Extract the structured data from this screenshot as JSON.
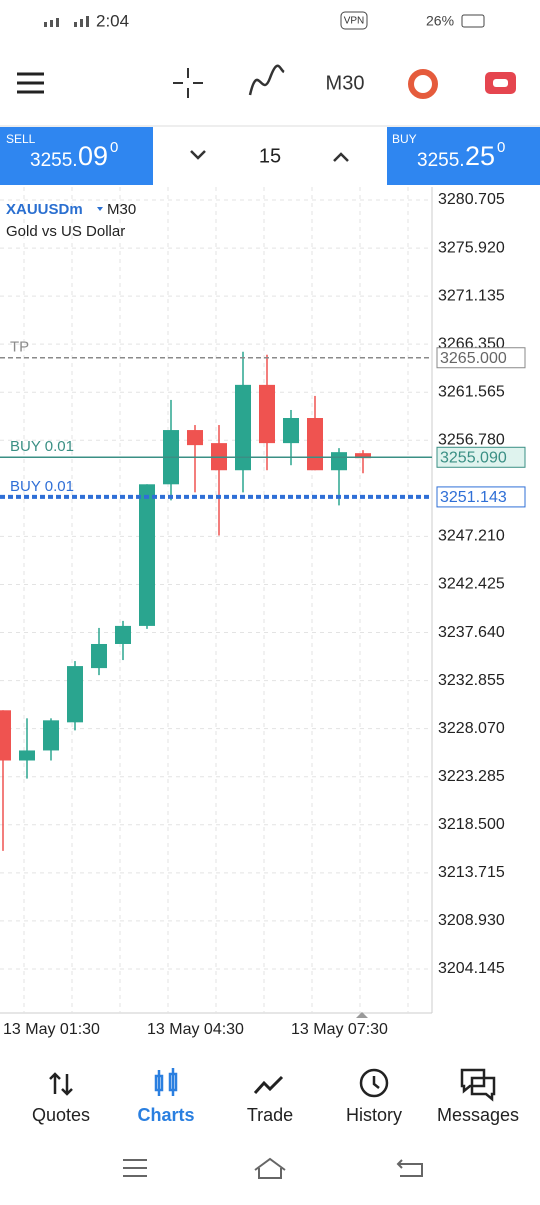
{
  "status_bar": {
    "time": "2:04",
    "vpn": "VPN",
    "battery": "26%"
  },
  "toolbar": {
    "timeframe": "M30"
  },
  "trade_bar": {
    "sell": {
      "label": "SELL",
      "main": "3255.",
      "big": "09",
      "sup": "0"
    },
    "lot": "15",
    "buy": {
      "label": "BUY",
      "main": "3255.",
      "big": "25",
      "sup": "0"
    }
  },
  "chart_data": {
    "type": "candlestick",
    "symbol": "XAUUSDm",
    "timeframe": "M30",
    "description": "Gold vs US Dollar",
    "categories": [
      "13 May 01:30",
      null,
      null,
      null,
      null,
      null,
      "13 May 04:30",
      null,
      null,
      null,
      null,
      null,
      "13 May 07:30",
      null,
      null,
      null
    ],
    "open": [
      3229.9,
      3224.9,
      3225.9,
      3228.7,
      3234.1,
      3236.5,
      3238.3,
      3252.4,
      3257.8,
      3256.5,
      3253.8,
      3262.3,
      3256.5,
      3259.0,
      3253.8,
      3255.5
    ],
    "high": [
      3229.9,
      3229.1,
      3229.1,
      3234.8,
      3238.1,
      3238.8,
      3252.4,
      3260.8,
      3258.3,
      3258.3,
      3265.6,
      3265.3,
      3259.8,
      3261.2,
      3256.0,
      3255.8
    ],
    "low": [
      3215.9,
      3223.1,
      3224.9,
      3227.9,
      3233.4,
      3234.9,
      3238.0,
      3250.8,
      3251.6,
      3247.3,
      3251.6,
      3253.8,
      3254.3,
      3253.8,
      3250.3,
      3253.5
    ],
    "close": [
      3224.9,
      3225.9,
      3228.9,
      3234.3,
      3236.5,
      3238.3,
      3252.4,
      3257.8,
      3256.3,
      3253.8,
      3262.3,
      3256.5,
      3259.0,
      3253.8,
      3255.6,
      3255.0
    ],
    "up_color": "#2aa58f",
    "down_color": "#ef5350",
    "ylim": [
      3199.76,
      3282.0
    ],
    "yticks": [
      3280.705,
      {
        "value": 3275.92,
        "label": "3275.920"
      },
      3271.135,
      {
        "value": 3266.35,
        "label": "3266.350"
      },
      3261.565,
      {
        "value": 3256.78,
        "label": "3256.780"
      },
      {
        "value": 3247.21,
        "label": "3247.210"
      },
      3242.425,
      {
        "value": 3237.64,
        "label": "3237.640"
      },
      3232.855,
      {
        "value": 3228.07,
        "label": "3228.070"
      },
      3223.285,
      {
        "value": 3218.5,
        "label": "3218.500"
      },
      3213.715,
      {
        "value": 3208.93,
        "label": "3208.930"
      },
      3204.145
    ],
    "grid": true,
    "levels": [
      {
        "label": "TP",
        "value": 3265,
        "value_label": "3265.000",
        "color": "#8a8a8a"
      },
      {
        "label": "BUY 0.01",
        "value": 3255.09,
        "value_label": "3255.090",
        "color": "#3a8f84"
      },
      {
        "label": "BUY 0.01",
        "value": 3251.143,
        "color": "#2f6fd6"
      }
    ]
  },
  "nav": [
    "Quotes",
    "Charts",
    "Trade",
    "History",
    "Messages"
  ]
}
